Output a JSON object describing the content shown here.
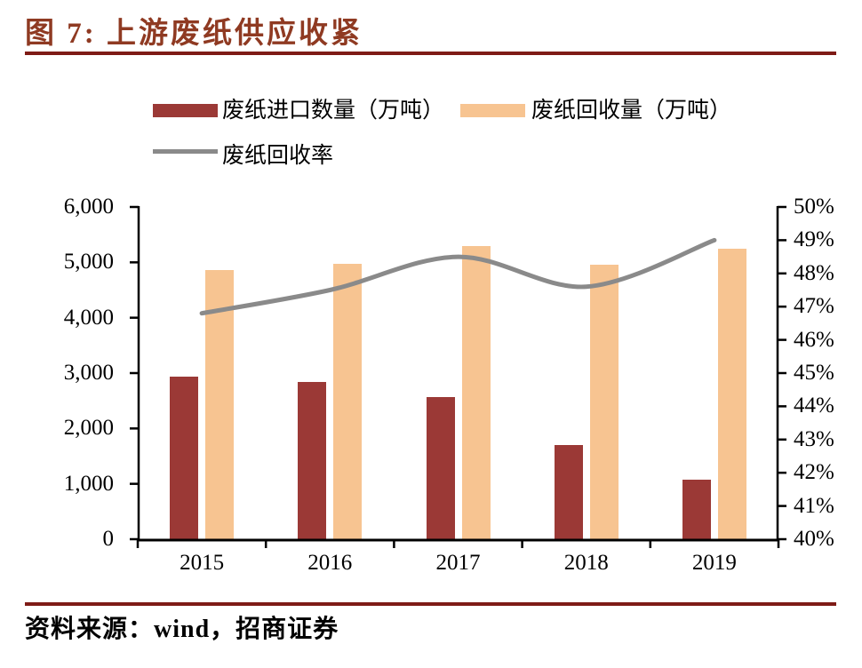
{
  "title": "图 7:  上游废纸供应收紧",
  "source": "资料来源：wind，招商证券",
  "colors": {
    "title": "#8F3A22",
    "rule": "#7E1B16",
    "bar_import": "#9B3936",
    "bar_recovery": "#F7C491",
    "rate_line": "#8A8A8A",
    "axis": "#000000"
  },
  "legend": [
    {
      "label": "废纸进口数量（万吨）",
      "type": "bar",
      "color": "#9B3936"
    },
    {
      "label": "废纸回收量（万吨）",
      "type": "bar",
      "color": "#F7C491"
    },
    {
      "label": "废纸回收率",
      "type": "line",
      "color": "#8A8A8A"
    }
  ],
  "chart_data": {
    "type": "bar+line combo",
    "categories": [
      "2015",
      "2016",
      "2017",
      "2018",
      "2019"
    ],
    "series": [
      {
        "name": "废纸进口数量（万吨）",
        "type": "bar",
        "axis": "left",
        "values": [
          2930,
          2840,
          2560,
          1700,
          1080
        ]
      },
      {
        "name": "废纸回收量（万吨）",
        "type": "bar",
        "axis": "left",
        "values": [
          4860,
          4980,
          5300,
          4950,
          5250
        ]
      },
      {
        "name": "废纸回收率",
        "type": "line",
        "axis": "right",
        "values": [
          46.8,
          47.5,
          48.5,
          47.6,
          49.0
        ]
      }
    ],
    "left_axis": {
      "min": 0,
      "max": 6000,
      "tick_step": 1000,
      "tick_labels": [
        "0",
        "1,000",
        "2,000",
        "3,000",
        "4,000",
        "5,000",
        "6,000"
      ]
    },
    "right_axis": {
      "min": 40,
      "max": 50,
      "tick_step": 1,
      "tick_labels": [
        "40%",
        "41%",
        "42%",
        "43%",
        "44%",
        "45%",
        "46%",
        "47%",
        "48%",
        "49%",
        "50%"
      ]
    },
    "grid": false,
    "legend_position": "top"
  }
}
